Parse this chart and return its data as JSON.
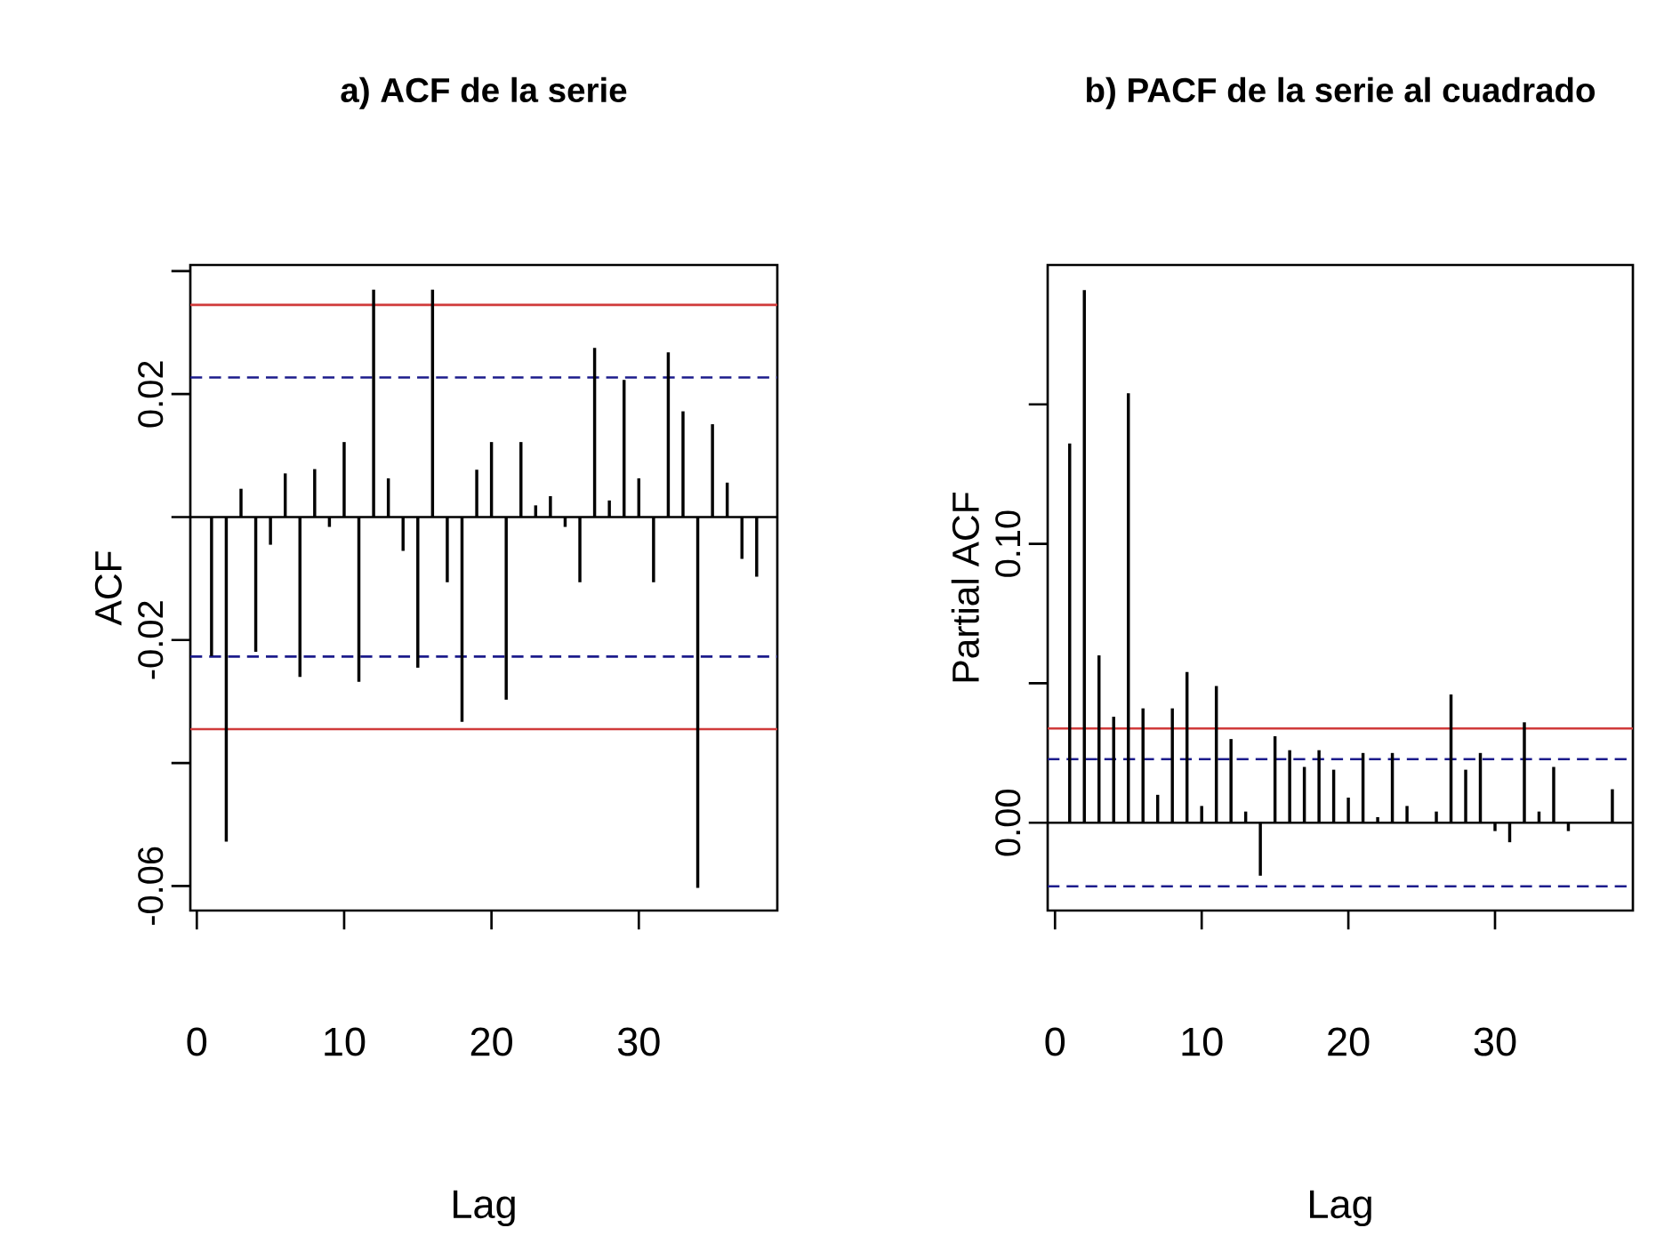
{
  "chart_data": [
    {
      "type": "bar",
      "title": "a) ACF de la serie",
      "xlabel": "Lag",
      "ylabel": "ACF",
      "x": [
        1,
        2,
        3,
        4,
        5,
        6,
        7,
        8,
        9,
        10,
        11,
        12,
        13,
        14,
        15,
        16,
        17,
        18,
        19,
        20,
        21,
        22,
        23,
        24,
        25,
        26,
        27,
        28,
        29,
        30,
        31,
        32,
        33,
        34,
        35,
        36,
        37,
        38
      ],
      "values": [
        -0.0226,
        -0.0528,
        0.0046,
        -0.0219,
        -0.0045,
        0.0071,
        -0.026,
        0.0078,
        -0.0016,
        0.0122,
        -0.0268,
        0.037,
        0.0063,
        -0.0055,
        -0.0245,
        0.037,
        -0.0106,
        -0.0333,
        0.0077,
        0.0122,
        -0.0297,
        0.0122,
        0.0019,
        0.0034,
        -0.0016,
        -0.0106,
        0.0275,
        0.0027,
        0.0223,
        0.0063,
        -0.0106,
        0.0268,
        0.0172,
        -0.0603,
        0.0151,
        0.0056,
        -0.0068,
        -0.0097
      ],
      "color": "#000000",
      "xlim": [
        -0.44,
        39.4
      ],
      "ylim": [
        -0.064,
        0.041
      ],
      "xticks": [
        0,
        10,
        20,
        30
      ],
      "yticks": [
        {
          "value": 0.04,
          "label": null
        },
        0.02,
        {
          "value": 0,
          "label": null
        },
        -0.02,
        {
          "value": -0.04,
          "label": null
        },
        -0.06
      ],
      "ref_lines": [
        {
          "axis": "y",
          "value": 0,
          "color": "#000000",
          "line_style": "solid"
        },
        {
          "axis": "y",
          "value": 0.0345,
          "color": "#d03a3a",
          "line_style": "solid"
        },
        {
          "axis": "y",
          "value": -0.0345,
          "color": "#d03a3a",
          "line_style": "solid"
        },
        {
          "axis": "y",
          "value": 0.0227,
          "color": "#1c1c8c",
          "line_style": "dashed"
        },
        {
          "axis": "y",
          "value": -0.0227,
          "color": "#1c1c8c",
          "line_style": "dashed"
        }
      ]
    },
    {
      "type": "bar",
      "title": "b) PACF de la serie al cuadrado",
      "xlabel": "Lag",
      "ylabel": "Partial ACF",
      "x": [
        1,
        2,
        3,
        4,
        5,
        6,
        7,
        8,
        9,
        10,
        11,
        12,
        13,
        14,
        15,
        16,
        17,
        18,
        19,
        20,
        21,
        22,
        23,
        24,
        25,
        26,
        27,
        28,
        29,
        30,
        31,
        32,
        33,
        34,
        35,
        36,
        37,
        38
      ],
      "values": [
        0.136,
        0.191,
        0.06,
        0.038,
        0.154,
        0.041,
        0.01,
        0.041,
        0.054,
        0.006,
        0.049,
        0.03,
        0.004,
        -0.019,
        0.031,
        0.026,
        0.02,
        0.026,
        0.019,
        0.009,
        0.025,
        0.002,
        0.025,
        0.006,
        null,
        0.004,
        0.046,
        0.019,
        0.025,
        -0.003,
        -0.007,
        0.036,
        0.004,
        0.02,
        -0.003,
        0,
        0,
        0.012
      ],
      "color": "#000000",
      "xlim": [
        -0.5,
        39.4
      ],
      "ylim": [
        -0.0315,
        0.2
      ],
      "xticks": [
        0,
        10,
        20,
        30
      ],
      "yticks": [
        {
          "value": 0,
          "label": "0.00"
        },
        {
          "value": 0.05,
          "label": null
        },
        {
          "value": 0.1,
          "label": "0.10"
        },
        {
          "value": 0.15,
          "label": null
        }
      ],
      "ref_lines": [
        {
          "axis": "y",
          "value": 0,
          "color": "#000000",
          "line_style": "solid"
        },
        {
          "axis": "y",
          "value": 0.0338,
          "color": "#d03a3a",
          "line_style": "solid"
        },
        {
          "axis": "y",
          "value": 0.0228,
          "color": "#1c1c8c",
          "line_style": "dashed"
        },
        {
          "axis": "y",
          "value": -0.0228,
          "color": "#1c1c8c",
          "line_style": "dashed"
        }
      ]
    }
  ]
}
